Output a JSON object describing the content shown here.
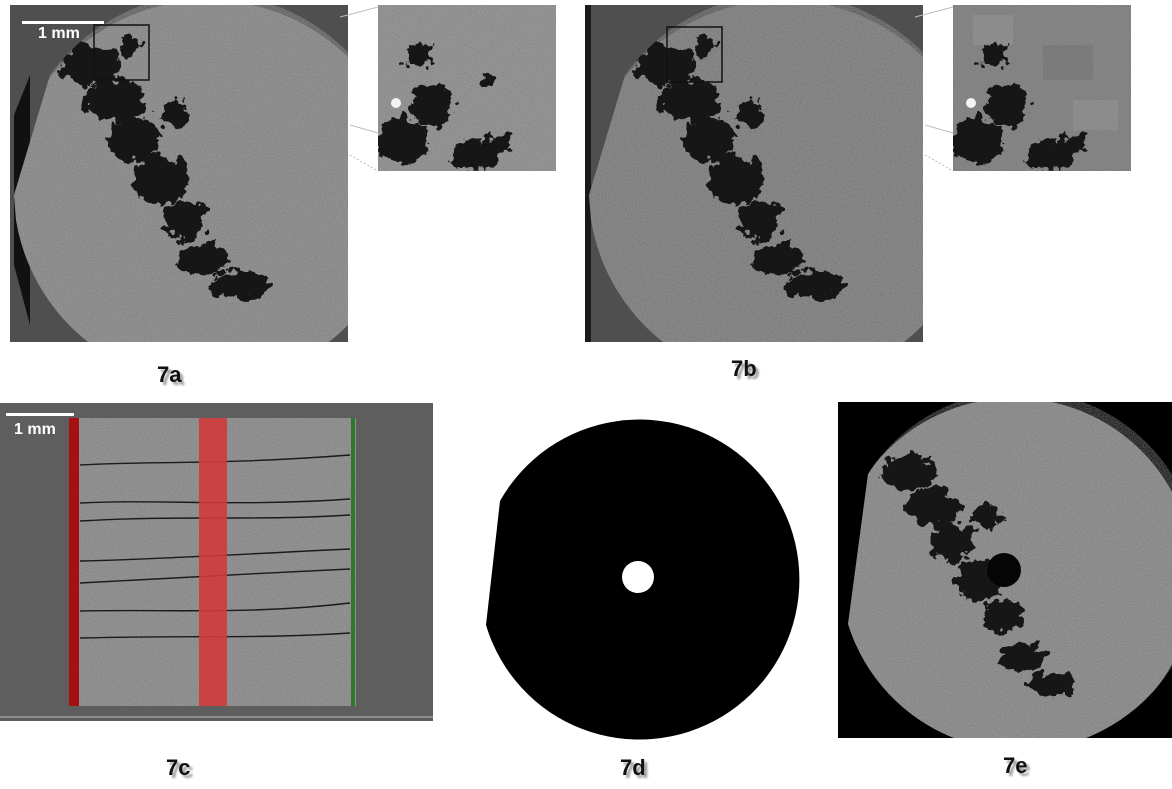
{
  "figure": {
    "labels": {
      "a": "7a",
      "b": "7b",
      "c": "7c",
      "d": "7d",
      "e": "7e"
    },
    "scale_bar_text": "1 mm",
    "panels": {
      "a": {
        "description_name": "ct-slice-original"
      },
      "b": {
        "description_name": "ct-slice-filtered"
      },
      "c": {
        "description_name": "ct-longitudinal-section"
      },
      "d": {
        "description_name": "binary-mask"
      },
      "e": {
        "description_name": "ct-slice-masked"
      }
    }
  }
}
